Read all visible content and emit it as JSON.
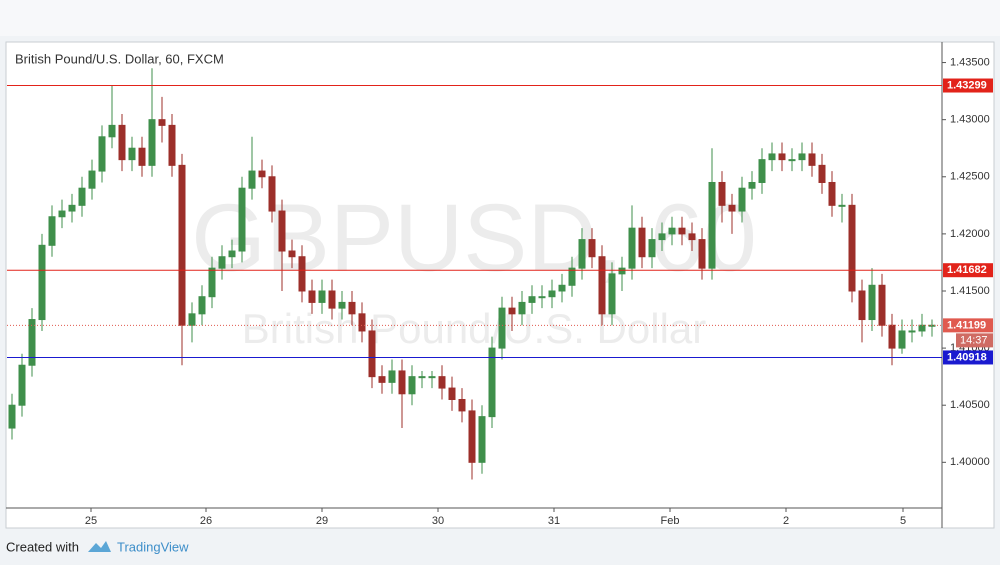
{
  "chart_data": {
    "type": "candlestick",
    "title": "British Pound/U.S. Dollar, 60, FXCM",
    "watermark": "GBPUSD, 60",
    "watermark_subtitle": "British Pound/U.S. Dollar",
    "footer": {
      "prefix": "Created with",
      "brand": "TradingView"
    },
    "up_color": "#3f8f4b",
    "down_color": "#9c2f2a",
    "grid": false,
    "xlim": [
      0,
      93.5
    ],
    "xticks": [
      {
        "value": 8.4,
        "label": "25"
      },
      {
        "value": 19.9,
        "label": "26"
      },
      {
        "value": 31.5,
        "label": "29"
      },
      {
        "value": 43.1,
        "label": "30"
      },
      {
        "value": 54.7,
        "label": "31"
      },
      {
        "value": 66.3,
        "label": "Feb"
      },
      {
        "value": 77.9,
        "label": "2"
      },
      {
        "value": 89.6,
        "label": "5"
      }
    ],
    "ylim": [
      1.396,
      1.4368
    ],
    "yticks": [
      {
        "value": 1.435,
        "label": "1.43500"
      },
      {
        "value": 1.43,
        "label": "1.43000"
      },
      {
        "value": 1.425,
        "label": "1.42500"
      },
      {
        "value": 1.42,
        "label": "1.42000"
      },
      {
        "value": 1.415,
        "label": "1.41500"
      },
      {
        "value": 1.41,
        "label": "1.41000"
      },
      {
        "value": 1.405,
        "label": "1.40500"
      },
      {
        "value": 1.4,
        "label": "1.40000"
      }
    ],
    "levels": [
      {
        "value": 1.43299,
        "color": "#e2231a",
        "style": "solid"
      },
      {
        "value": 1.41682,
        "color": "#e2231a",
        "style": "solid"
      },
      {
        "value": 1.40918,
        "color": "#1a1ad0",
        "style": "solid"
      },
      {
        "value": 1.41199,
        "color": "#e05a4f",
        "style": "dotted",
        "countdown": "14:37"
      }
    ],
    "open": [
      1.403,
      1.405,
      1.4085,
      1.4125,
      1.419,
      1.4215,
      1.422,
      1.4225,
      1.424,
      1.4255,
      1.4285,
      1.4295,
      1.4265,
      1.4275,
      1.426,
      1.43,
      1.4295,
      1.426,
      1.412,
      1.413,
      1.4145,
      1.417,
      1.418,
      1.4185,
      1.424,
      1.4255,
      1.425,
      1.422,
      1.4185,
      1.418,
      1.415,
      1.414,
      1.415,
      1.4135,
      1.414,
      1.413,
      1.4115,
      1.4075,
      1.407,
      1.408,
      1.406,
      1.4075,
      1.4075,
      1.4075,
      1.4065,
      1.4055,
      1.4045,
      1.4,
      1.404,
      1.41,
      1.4135,
      1.413,
      1.414,
      1.4145,
      1.4145,
      1.415,
      1.4155,
      1.417,
      1.4195,
      1.418,
      1.413,
      1.4165,
      1.417,
      1.4205,
      1.418,
      1.4195,
      1.42,
      1.4205,
      1.42,
      1.4195,
      1.417,
      1.4245,
      1.4225,
      1.422,
      1.424,
      1.4245,
      1.4265,
      1.427,
      1.4265,
      1.4265,
      1.427,
      1.426,
      1.4245,
      1.4225,
      1.4225,
      1.415,
      1.4125,
      1.4155,
      1.412,
      1.41,
      1.4115,
      1.4115,
      1.412
    ],
    "high": [
      1.406,
      1.4095,
      1.4135,
      1.42,
      1.4225,
      1.423,
      1.4235,
      1.425,
      1.4265,
      1.4295,
      1.433,
      1.4305,
      1.4285,
      1.4285,
      1.4345,
      1.432,
      1.4305,
      1.427,
      1.414,
      1.4155,
      1.418,
      1.419,
      1.4195,
      1.425,
      1.4285,
      1.4265,
      1.426,
      1.423,
      1.4195,
      1.419,
      1.416,
      1.416,
      1.416,
      1.415,
      1.415,
      1.414,
      1.4125,
      1.4085,
      1.409,
      1.409,
      1.4085,
      1.408,
      1.408,
      1.4085,
      1.4075,
      1.4065,
      1.4055,
      1.405,
      1.411,
      1.4145,
      1.4145,
      1.415,
      1.4155,
      1.4155,
      1.416,
      1.4165,
      1.418,
      1.4205,
      1.4205,
      1.419,
      1.4175,
      1.418,
      1.4225,
      1.4215,
      1.4205,
      1.421,
      1.4215,
      1.4215,
      1.421,
      1.4205,
      1.4275,
      1.4255,
      1.4235,
      1.425,
      1.4255,
      1.4275,
      1.428,
      1.428,
      1.4275,
      1.428,
      1.428,
      1.427,
      1.4255,
      1.4235,
      1.4235,
      1.416,
      1.417,
      1.4165,
      1.413,
      1.4125,
      1.4125,
      1.413,
      1.4125
    ],
    "low": [
      1.402,
      1.404,
      1.4075,
      1.4115,
      1.418,
      1.4205,
      1.421,
      1.4215,
      1.423,
      1.4245,
      1.4275,
      1.4255,
      1.4255,
      1.425,
      1.425,
      1.428,
      1.425,
      1.4085,
      1.4105,
      1.412,
      1.4135,
      1.416,
      1.417,
      1.4175,
      1.423,
      1.424,
      1.421,
      1.415,
      1.417,
      1.414,
      1.413,
      1.413,
      1.4125,
      1.4125,
      1.412,
      1.4105,
      1.4065,
      1.406,
      1.406,
      1.403,
      1.405,
      1.4065,
      1.4065,
      1.4055,
      1.4045,
      1.4035,
      1.3985,
      1.399,
      1.403,
      1.409,
      1.4115,
      1.412,
      1.413,
      1.4135,
      1.4135,
      1.414,
      1.4145,
      1.416,
      1.417,
      1.412,
      1.412,
      1.415,
      1.416,
      1.417,
      1.417,
      1.4185,
      1.419,
      1.419,
      1.4185,
      1.416,
      1.416,
      1.421,
      1.42,
      1.421,
      1.423,
      1.4235,
      1.4255,
      1.4255,
      1.4255,
      1.4255,
      1.425,
      1.4235,
      1.4215,
      1.421,
      1.414,
      1.4105,
      1.4115,
      1.411,
      1.4085,
      1.4095,
      1.4105,
      1.411,
      1.411
    ],
    "close": [
      1.405,
      1.4085,
      1.4125,
      1.419,
      1.4215,
      1.422,
      1.4225,
      1.424,
      1.4255,
      1.4285,
      1.4295,
      1.4265,
      1.4275,
      1.426,
      1.43,
      1.4295,
      1.426,
      1.412,
      1.413,
      1.4145,
      1.417,
      1.418,
      1.4185,
      1.424,
      1.4255,
      1.425,
      1.422,
      1.4185,
      1.418,
      1.415,
      1.414,
      1.415,
      1.4135,
      1.414,
      1.413,
      1.4115,
      1.4075,
      1.407,
      1.408,
      1.406,
      1.4075,
      1.4075,
      1.4075,
      1.4065,
      1.4055,
      1.4045,
      1.4,
      1.404,
      1.41,
      1.4135,
      1.413,
      1.414,
      1.4145,
      1.4145,
      1.415,
      1.4155,
      1.417,
      1.4195,
      1.418,
      1.413,
      1.4165,
      1.417,
      1.4205,
      1.418,
      1.4195,
      1.42,
      1.4205,
      1.42,
      1.4195,
      1.417,
      1.4245,
      1.4225,
      1.422,
      1.424,
      1.4245,
      1.4265,
      1.427,
      1.4265,
      1.4265,
      1.427,
      1.426,
      1.4245,
      1.4225,
      1.4225,
      1.415,
      1.4125,
      1.4155,
      1.412,
      1.41,
      1.4115,
      1.4115,
      1.412,
      1.412
    ]
  }
}
